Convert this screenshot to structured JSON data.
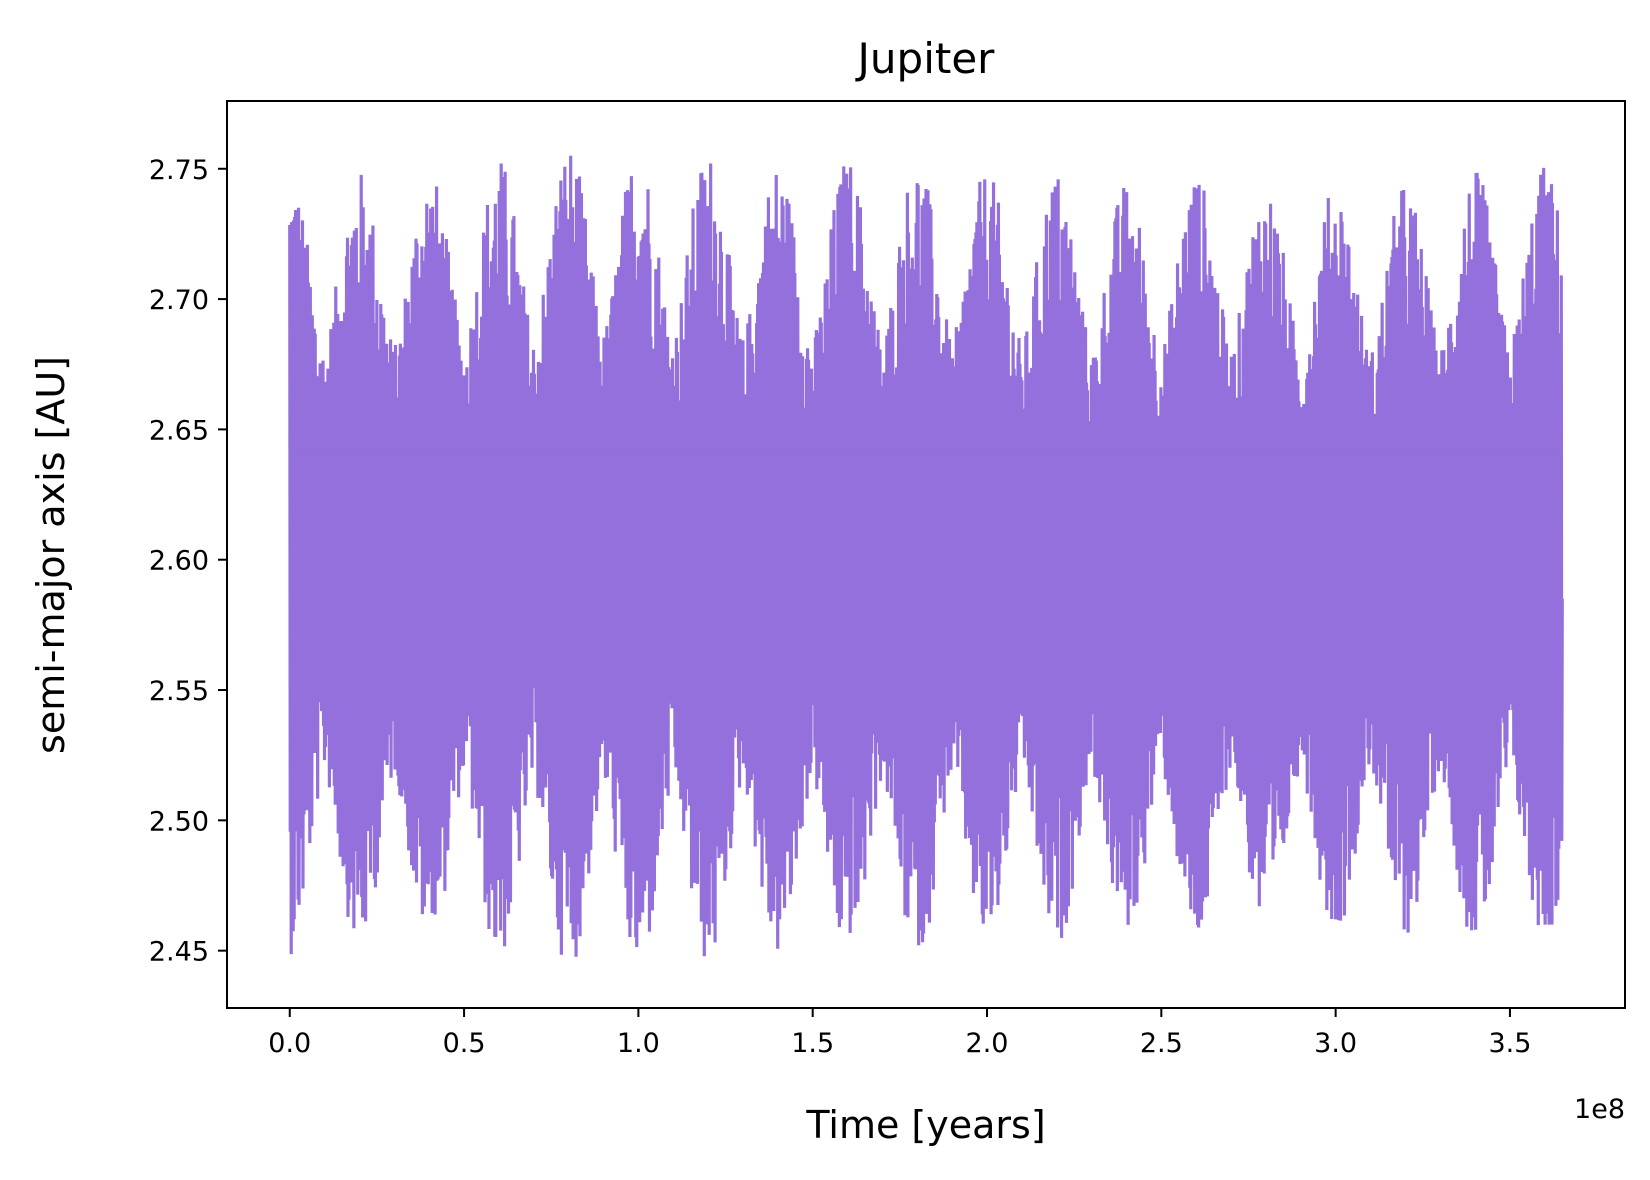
{
  "chart_data": {
    "type": "line",
    "title": "Jupiter",
    "xlabel": "Time [years]",
    "ylabel": "semi-major axis [AU]",
    "x_offset_label": "1e8",
    "xlim": [
      -0.18,
      3.83
    ],
    "ylim": [
      2.428,
      2.776
    ],
    "x_ticks": [
      0.0,
      0.5,
      1.0,
      1.5,
      2.0,
      2.5,
      3.0,
      3.5
    ],
    "x_tick_labels": [
      "0.0",
      "0.5",
      "1.0",
      "1.5",
      "2.0",
      "2.5",
      "3.0",
      "3.5"
    ],
    "y_ticks": [
      2.45,
      2.5,
      2.55,
      2.6,
      2.65,
      2.7,
      2.75
    ],
    "y_tick_labels": [
      "2.45",
      "2.50",
      "2.55",
      "2.60",
      "2.65",
      "2.70",
      "2.75"
    ],
    "grid": false,
    "legend": "none",
    "series": [
      {
        "color": "#9370db",
        "x_range": [
          0.0,
          3.65
        ],
        "band_peak_x": [
          0.0,
          0.2,
          0.4,
          0.6,
          0.8,
          1.0,
          1.2,
          1.4,
          1.6,
          1.8,
          2.0,
          2.2,
          2.4,
          2.6,
          2.8,
          3.0,
          3.2,
          3.4,
          3.6
        ],
        "envelope_max": [
          2.75,
          2.75,
          2.75,
          2.755,
          2.76,
          2.76,
          2.758,
          2.753,
          2.755,
          2.755,
          2.75,
          2.75,
          2.745,
          2.75,
          2.745,
          2.745,
          2.745,
          2.75,
          2.752
        ],
        "envelope_min": [
          2.448,
          2.455,
          2.465,
          2.452,
          2.448,
          2.445,
          2.448,
          2.447,
          2.457,
          2.452,
          2.455,
          2.45,
          2.46,
          2.455,
          2.465,
          2.462,
          2.455,
          2.458,
          2.46
        ],
        "mean": 2.6,
        "final_value": 2.585
      }
    ]
  }
}
